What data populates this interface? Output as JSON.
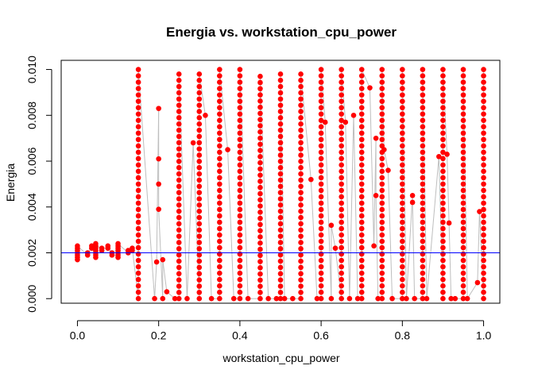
{
  "chart_data": {
    "type": "scatter",
    "title": "Energia vs. workstation_cpu_power",
    "xlabel": "workstation_cpu_power",
    "ylabel": "Energia",
    "xlim": [
      -0.04,
      1.04
    ],
    "ylim": [
      -0.0002,
      0.0104
    ],
    "x_ticks": [
      0.0,
      0.2,
      0.4,
      0.6,
      0.8,
      1.0
    ],
    "x_tick_labels": [
      "0.0",
      "0.2",
      "0.4",
      "0.6",
      "0.8",
      "1.0"
    ],
    "y_ticks": [
      0.0,
      0.002,
      0.004,
      0.006,
      0.008,
      0.01
    ],
    "y_tick_labels": [
      "0.000",
      "0.002",
      "0.004",
      "0.006",
      "0.008",
      "0.010"
    ],
    "hline": 0.002,
    "hline_color": "#0000ff",
    "point_color": "#ff0000",
    "connector_color": "#bebebe",
    "grid": false,
    "legend": "none",
    "series": [
      {
        "columns": [
          {
            "x": 0.0,
            "y": [
              0.0017,
              0.0018,
              0.0019,
              0.002,
              0.0021,
              0.0022,
              0.0023
            ]
          },
          {
            "x": 0.025,
            "y": [
              0.0019,
              0.002
            ]
          },
          {
            "x": 0.035,
            "y": [
              0.0022,
              0.0023
            ]
          },
          {
            "x": 0.045,
            "y": [
              0.0018,
              0.0019,
              0.002,
              0.0021,
              0.0022,
              0.0023,
              0.0024
            ]
          },
          {
            "x": 0.06,
            "y": [
              0.0021,
              0.0022
            ]
          },
          {
            "x": 0.075,
            "y": [
              0.0022,
              0.0023
            ]
          },
          {
            "x": 0.085,
            "y": [
              0.0019,
              0.002
            ]
          },
          {
            "x": 0.1,
            "y": [
              0.0018,
              0.0019,
              0.002,
              0.0021,
              0.0022,
              0.0023,
              0.0024
            ]
          },
          {
            "x": 0.125,
            "y": [
              0.002,
              0.0021
            ]
          },
          {
            "x": 0.135,
            "y": [
              0.0021,
              0.0022
            ]
          },
          {
            "x": 0.15,
            "range": [
              0.0,
              0.01
            ]
          },
          {
            "x": 0.19,
            "y": [
              0.0
            ]
          },
          {
            "x": 0.195,
            "y": [
              0.0016
            ]
          },
          {
            "x": 0.2,
            "y": [
              0.0083,
              0.0061,
              0.005,
              0.0039
            ]
          },
          {
            "x": 0.21,
            "y": [
              0.0,
              0.0017
            ]
          },
          {
            "x": 0.22,
            "y": [
              0.0003
            ]
          },
          {
            "x": 0.24,
            "y": [
              0.0
            ]
          },
          {
            "x": 0.25,
            "range": [
              0.0,
              0.0098
            ]
          },
          {
            "x": 0.27,
            "y": [
              0.0
            ]
          },
          {
            "x": 0.285,
            "y": [
              0.0068
            ]
          },
          {
            "x": 0.3,
            "range": [
              0.0,
              0.0098
            ]
          },
          {
            "x": 0.315,
            "y": [
              0.008
            ]
          },
          {
            "x": 0.33,
            "y": [
              0.0
            ]
          },
          {
            "x": 0.35,
            "range": [
              0.0,
              0.01
            ]
          },
          {
            "x": 0.37,
            "y": [
              0.0065
            ]
          },
          {
            "x": 0.385,
            "y": [
              0.0
            ]
          },
          {
            "x": 0.4,
            "range": [
              0.0,
              0.01
            ]
          },
          {
            "x": 0.42,
            "y": [
              0.0
            ]
          },
          {
            "x": 0.45,
            "range": [
              0.0,
              0.0097
            ]
          },
          {
            "x": 0.47,
            "y": [
              0.0
            ]
          },
          {
            "x": 0.49,
            "y": [
              0.0
            ]
          },
          {
            "x": 0.5,
            "range": [
              0.0,
              0.0098
            ]
          },
          {
            "x": 0.51,
            "y": [
              0.0
            ]
          },
          {
            "x": 0.53,
            "y": [
              0.0
            ]
          },
          {
            "x": 0.55,
            "range": [
              0.0,
              0.0098
            ]
          },
          {
            "x": 0.575,
            "y": [
              0.0052
            ]
          },
          {
            "x": 0.59,
            "y": [
              0.0
            ]
          },
          {
            "x": 0.6,
            "range": [
              0.0,
              0.01
            ]
          },
          {
            "x": 0.61,
            "y": [
              0.0077
            ]
          },
          {
            "x": 0.625,
            "y": [
              0.0,
              0.0032
            ]
          },
          {
            "x": 0.635,
            "y": [
              0.0022
            ]
          },
          {
            "x": 0.65,
            "range": [
              0.0,
              0.01
            ]
          },
          {
            "x": 0.66,
            "y": [
              0.0077
            ]
          },
          {
            "x": 0.67,
            "y": [
              0.0
            ]
          },
          {
            "x": 0.68,
            "y": [
              0.008
            ]
          },
          {
            "x": 0.69,
            "y": [
              0.0
            ]
          },
          {
            "x": 0.7,
            "range": [
              0.0,
              0.01
            ]
          },
          {
            "x": 0.72,
            "y": [
              0.0092
            ]
          },
          {
            "x": 0.73,
            "y": [
              0.0023
            ]
          },
          {
            "x": 0.735,
            "y": [
              0.007,
              0.0045
            ]
          },
          {
            "x": 0.74,
            "y": [
              0.0
            ]
          },
          {
            "x": 0.75,
            "range": [
              0.0,
              0.01
            ]
          },
          {
            "x": 0.755,
            "y": [
              0.0065
            ]
          },
          {
            "x": 0.765,
            "y": [
              0.0056
            ]
          },
          {
            "x": 0.775,
            "y": [
              0.0
            ]
          },
          {
            "x": 0.8,
            "range": [
              0.0,
              0.01
            ]
          },
          {
            "x": 0.81,
            "y": [
              0.0
            ]
          },
          {
            "x": 0.825,
            "y": [
              0.0045,
              0.0042
            ]
          },
          {
            "x": 0.83,
            "y": [
              0.0
            ]
          },
          {
            "x": 0.85,
            "range": [
              0.0,
              0.01
            ]
          },
          {
            "x": 0.86,
            "y": [
              0.0
            ]
          },
          {
            "x": 0.89,
            "y": [
              0.0062
            ]
          },
          {
            "x": 0.9,
            "range": [
              0.0,
              0.01
            ]
          },
          {
            "x": 0.91,
            "y": [
              0.0063
            ]
          },
          {
            "x": 0.915,
            "y": [
              0.0033
            ]
          },
          {
            "x": 0.92,
            "y": [
              0.0
            ]
          },
          {
            "x": 0.93,
            "y": [
              0.0
            ]
          },
          {
            "x": 0.95,
            "range": [
              0.0,
              0.01
            ]
          },
          {
            "x": 0.96,
            "y": [
              0.0
            ]
          },
          {
            "x": 0.985,
            "y": [
              0.0007
            ]
          },
          {
            "x": 0.99,
            "y": [
              0.0038
            ]
          },
          {
            "x": 1.0,
            "range": [
              0.0,
              0.01
            ]
          }
        ]
      }
    ]
  }
}
